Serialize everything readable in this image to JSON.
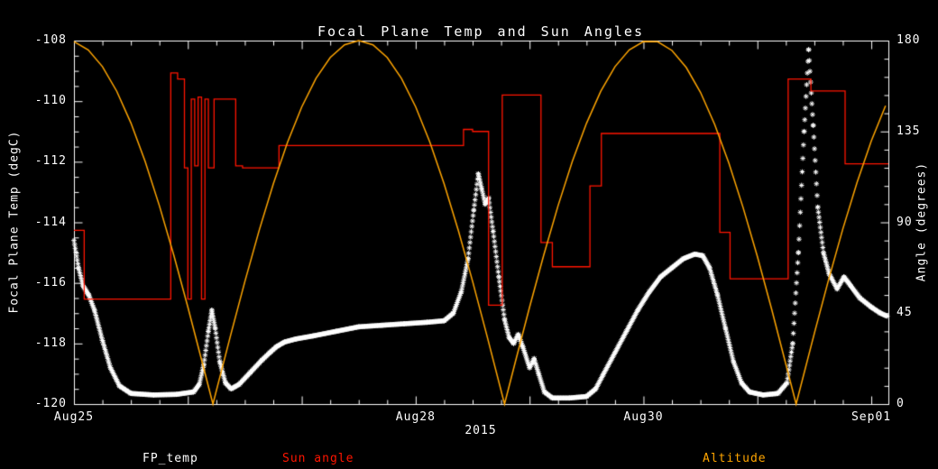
{
  "window": {
    "background": "#000000"
  },
  "chart": {
    "title": "Focal Plane Temp and Sun Angles",
    "xlabel": "2015",
    "ylabel_left": "Focal Plane Temp (degC)",
    "ylabel_right": "Angle (degrees)",
    "legend": [
      {
        "label": "FP_temp",
        "color": "#ffffff"
      },
      {
        "label": "Sun angle",
        "color": "#ff1500"
      },
      {
        "label": "Altitude",
        "color": "#ffa500"
      }
    ],
    "colors": {
      "foreground": "#ffffff",
      "background": "#000000"
    }
  },
  "chart_data": {
    "type": "line",
    "title": "Focal Plane Temp and Sun Angles",
    "x_axis": {
      "label": "2015",
      "unit": "days_from_Aug25_2015",
      "domain": [
        0,
        7.15
      ],
      "major_ticks": [
        {
          "t": 0,
          "label": "Aug25"
        },
        {
          "t": 3,
          "label": "Aug28"
        },
        {
          "t": 5,
          "label": "Aug30"
        },
        {
          "t": 7,
          "label": "Sep01"
        }
      ],
      "day_ticks": [
        0,
        1,
        2,
        3,
        4,
        5,
        6,
        7
      ],
      "minor_tick_step": 0.25
    },
    "y_left": {
      "label": "Focal Plane Temp (degC)",
      "range": [
        -120,
        -108
      ],
      "ticks": [
        -108,
        -110,
        -112,
        -114,
        -116,
        -118,
        -120
      ],
      "minor_tick_step": 0.5
    },
    "y_right": {
      "label": "Angle (degrees)",
      "range": [
        0,
        180
      ],
      "ticks": [
        0,
        45,
        90,
        135,
        180
      ],
      "minor_tick_step": 9
    },
    "grid": false,
    "legend_position": "bottom",
    "series": [
      {
        "name": "FP_temp",
        "color": "#ffffff",
        "style": "scatter-asterisk",
        "axis": "left",
        "points": [
          [
            0,
            -114.6
          ],
          [
            0.04,
            -115.5
          ],
          [
            0.08,
            -116.1
          ],
          [
            0.13,
            -116.4
          ],
          [
            0.18,
            -116.9
          ],
          [
            0.25,
            -117.9
          ],
          [
            0.32,
            -118.8
          ],
          [
            0.4,
            -119.4
          ],
          [
            0.5,
            -119.65
          ],
          [
            0.7,
            -119.7
          ],
          [
            0.9,
            -119.68
          ],
          [
            1.05,
            -119.6
          ],
          [
            1.1,
            -119.35
          ],
          [
            1.14,
            -118.7
          ],
          [
            1.18,
            -117.6
          ],
          [
            1.21,
            -116.9
          ],
          [
            1.24,
            -117.5
          ],
          [
            1.28,
            -118.6
          ],
          [
            1.33,
            -119.3
          ],
          [
            1.38,
            -119.5
          ],
          [
            1.45,
            -119.35
          ],
          [
            1.55,
            -118.95
          ],
          [
            1.65,
            -118.55
          ],
          [
            1.72,
            -118.3
          ],
          [
            1.78,
            -118.1
          ],
          [
            1.85,
            -117.95
          ],
          [
            1.95,
            -117.85
          ],
          [
            2.1,
            -117.75
          ],
          [
            2.3,
            -117.6
          ],
          [
            2.5,
            -117.45
          ],
          [
            2.7,
            -117.4
          ],
          [
            2.9,
            -117.35
          ],
          [
            3.1,
            -117.3
          ],
          [
            3.25,
            -117.25
          ],
          [
            3.33,
            -117.0
          ],
          [
            3.4,
            -116.3
          ],
          [
            3.46,
            -115.2
          ],
          [
            3.51,
            -113.6
          ],
          [
            3.55,
            -112.4
          ],
          [
            3.58,
            -112.9
          ],
          [
            3.61,
            -113.4
          ],
          [
            3.64,
            -113.2
          ],
          [
            3.68,
            -114.3
          ],
          [
            3.73,
            -115.8
          ],
          [
            3.78,
            -117.2
          ],
          [
            3.82,
            -117.8
          ],
          [
            3.86,
            -118.0
          ],
          [
            3.9,
            -117.7
          ],
          [
            3.94,
            -118.1
          ],
          [
            4.0,
            -118.8
          ],
          [
            4.04,
            -118.5
          ],
          [
            4.08,
            -119.0
          ],
          [
            4.13,
            -119.6
          ],
          [
            4.2,
            -119.8
          ],
          [
            4.35,
            -119.8
          ],
          [
            4.5,
            -119.75
          ],
          [
            4.58,
            -119.5
          ],
          [
            4.65,
            -119.0
          ],
          [
            4.75,
            -118.3
          ],
          [
            4.85,
            -117.6
          ],
          [
            4.95,
            -116.9
          ],
          [
            5.05,
            -116.3
          ],
          [
            5.15,
            -115.8
          ],
          [
            5.25,
            -115.5
          ],
          [
            5.35,
            -115.2
          ],
          [
            5.45,
            -115.05
          ],
          [
            5.52,
            -115.1
          ],
          [
            5.58,
            -115.5
          ],
          [
            5.65,
            -116.4
          ],
          [
            5.72,
            -117.5
          ],
          [
            5.79,
            -118.6
          ],
          [
            5.86,
            -119.3
          ],
          [
            5.93,
            -119.6
          ],
          [
            6.05,
            -119.7
          ],
          [
            6.18,
            -119.65
          ],
          [
            6.26,
            -119.3
          ],
          [
            6.31,
            -118.0
          ],
          [
            6.36,
            -115.0
          ],
          [
            6.41,
            -111.0
          ],
          [
            6.45,
            -108.3
          ],
          [
            6.49,
            -110.8
          ],
          [
            6.53,
            -113.5
          ],
          [
            6.58,
            -115.0
          ],
          [
            6.63,
            -115.7
          ],
          [
            6.7,
            -116.2
          ],
          [
            6.76,
            -115.8
          ],
          [
            6.82,
            -116.1
          ],
          [
            6.9,
            -116.5
          ],
          [
            7.0,
            -116.8
          ],
          [
            7.08,
            -117.0
          ],
          [
            7.14,
            -117.1
          ]
        ]
      },
      {
        "name": "Sun angle",
        "color": "#ff1500",
        "style": "step",
        "axis": "right",
        "points": [
          [
            0,
            86
          ],
          [
            0.09,
            86
          ],
          [
            0.09,
            52
          ],
          [
            0.85,
            52
          ],
          [
            0.85,
            164
          ],
          [
            0.91,
            164
          ],
          [
            0.91,
            161
          ],
          [
            0.97,
            161
          ],
          [
            0.97,
            117
          ],
          [
            1.0,
            117
          ],
          [
            1.0,
            52
          ],
          [
            1.03,
            52
          ],
          [
            1.03,
            151
          ],
          [
            1.06,
            151
          ],
          [
            1.06,
            118
          ],
          [
            1.09,
            118
          ],
          [
            1.09,
            152
          ],
          [
            1.12,
            152
          ],
          [
            1.12,
            52
          ],
          [
            1.15,
            52
          ],
          [
            1.15,
            151
          ],
          [
            1.18,
            151
          ],
          [
            1.18,
            117
          ],
          [
            1.23,
            117
          ],
          [
            1.23,
            151
          ],
          [
            1.42,
            151
          ],
          [
            1.42,
            118
          ],
          [
            1.48,
            118
          ],
          [
            1.48,
            117
          ],
          [
            1.8,
            117
          ],
          [
            1.8,
            128
          ],
          [
            3.42,
            128
          ],
          [
            3.42,
            136
          ],
          [
            3.5,
            136
          ],
          [
            3.5,
            135
          ],
          [
            3.64,
            135
          ],
          [
            3.64,
            49
          ],
          [
            3.76,
            49
          ],
          [
            3.76,
            153
          ],
          [
            4.1,
            153
          ],
          [
            4.1,
            80
          ],
          [
            4.2,
            80
          ],
          [
            4.2,
            68
          ],
          [
            4.53,
            68
          ],
          [
            4.53,
            108
          ],
          [
            4.63,
            108
          ],
          [
            4.63,
            134
          ],
          [
            5.67,
            134
          ],
          [
            5.67,
            85
          ],
          [
            5.76,
            85
          ],
          [
            5.76,
            62
          ],
          [
            6.27,
            62
          ],
          [
            6.27,
            161
          ],
          [
            6.47,
            161
          ],
          [
            6.47,
            155
          ],
          [
            6.77,
            155
          ],
          [
            6.77,
            119
          ],
          [
            7.15,
            119
          ]
        ]
      },
      {
        "name": "Altitude",
        "color": "#ffa500",
        "style": "line",
        "axis": "right",
        "points": [
          [
            0,
            179.5
          ],
          [
            0.125,
            175.4
          ],
          [
            0.25,
            167.1
          ],
          [
            0.375,
            155.0
          ],
          [
            0.5,
            139.2
          ],
          [
            0.625,
            120.1
          ],
          [
            0.75,
            98.2
          ],
          [
            0.875,
            74.0
          ],
          [
            1.0,
            48.0
          ],
          [
            1.125,
            20.9
          ],
          [
            1.22,
            0.0
          ],
          [
            1.375,
            34.0
          ],
          [
            1.5,
            60.6
          ],
          [
            1.625,
            85.8
          ],
          [
            1.75,
            109.0
          ],
          [
            1.875,
            129.6
          ],
          [
            2.0,
            147.2
          ],
          [
            2.125,
            161.3
          ],
          [
            2.25,
            171.6
          ],
          [
            2.375,
            177.9
          ],
          [
            2.5,
            180.0
          ],
          [
            2.625,
            177.9
          ],
          [
            2.75,
            171.6
          ],
          [
            2.875,
            161.3
          ],
          [
            3.0,
            147.2
          ],
          [
            3.125,
            129.6
          ],
          [
            3.25,
            109.0
          ],
          [
            3.375,
            85.9
          ],
          [
            3.5,
            60.7
          ],
          [
            3.625,
            34.0
          ],
          [
            3.78,
            0.0
          ],
          [
            3.875,
            20.9
          ],
          [
            4.0,
            48.0
          ],
          [
            4.125,
            73.9
          ],
          [
            4.25,
            98.2
          ],
          [
            4.375,
            120.1
          ],
          [
            4.5,
            139.1
          ],
          [
            4.625,
            154.9
          ],
          [
            4.75,
            167.1
          ],
          [
            4.875,
            175.4
          ],
          [
            5.0,
            179.5
          ],
          [
            5.125,
            179.4
          ],
          [
            5.25,
            175.1
          ],
          [
            5.375,
            166.7
          ],
          [
            5.5,
            154.4
          ],
          [
            5.625,
            138.5
          ],
          [
            5.75,
            119.3
          ],
          [
            5.875,
            97.2
          ],
          [
            6.0,
            73.0
          ],
          [
            6.125,
            47.0
          ],
          [
            6.34,
            0.0
          ],
          [
            6.5,
            35.0
          ],
          [
            6.625,
            61.6
          ],
          [
            6.75,
            86.7
          ],
          [
            6.875,
            109.8
          ],
          [
            7.0,
            130.3
          ],
          [
            7.125,
            147.7
          ]
        ]
      }
    ]
  }
}
